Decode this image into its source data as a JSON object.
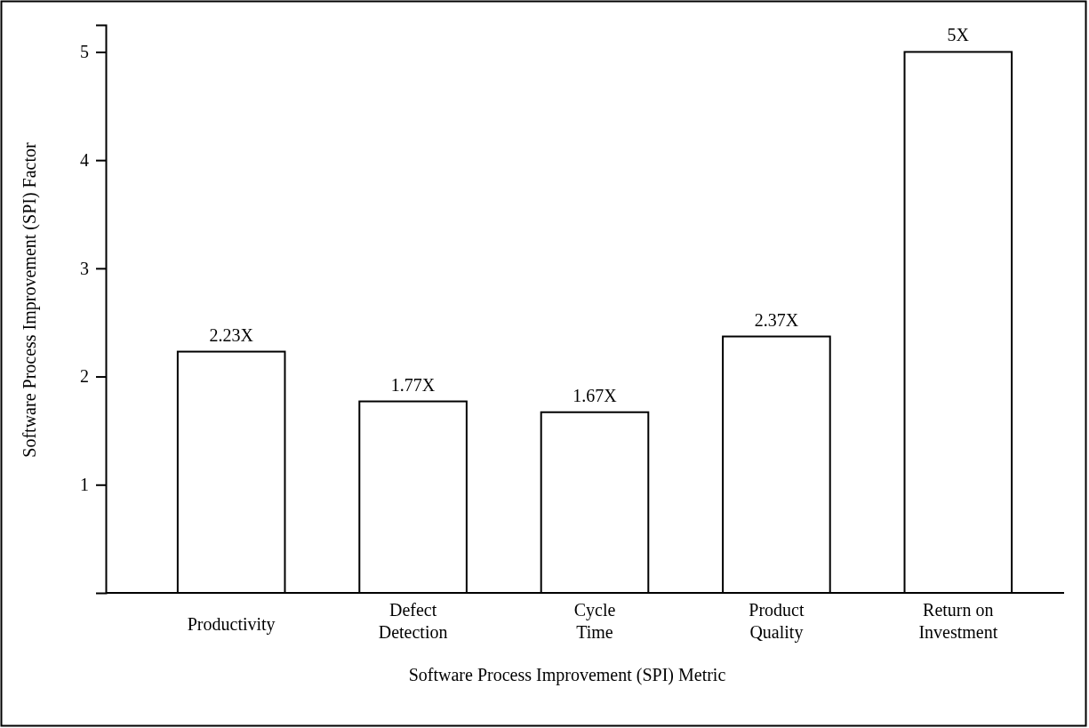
{
  "chart_data": {
    "type": "bar",
    "xlabel": "Software Process Improvement (SPI) Metric",
    "ylabel": "Software Process Improvement (SPI) Factor",
    "categories": [
      "Productivity",
      "Defect\nDetection",
      "Cycle\nTime",
      "Product\nQuality",
      "Return on\nInvestment"
    ],
    "values": [
      2.23,
      1.77,
      1.67,
      2.37,
      5
    ],
    "value_labels": [
      "2.23X",
      "1.77X",
      "1.67X",
      "2.37X",
      "5X"
    ],
    "color": "#ffffff",
    "ylim": [
      0,
      5.25
    ],
    "yticks": [
      1,
      2,
      3,
      4,
      5
    ],
    "grid": false
  }
}
